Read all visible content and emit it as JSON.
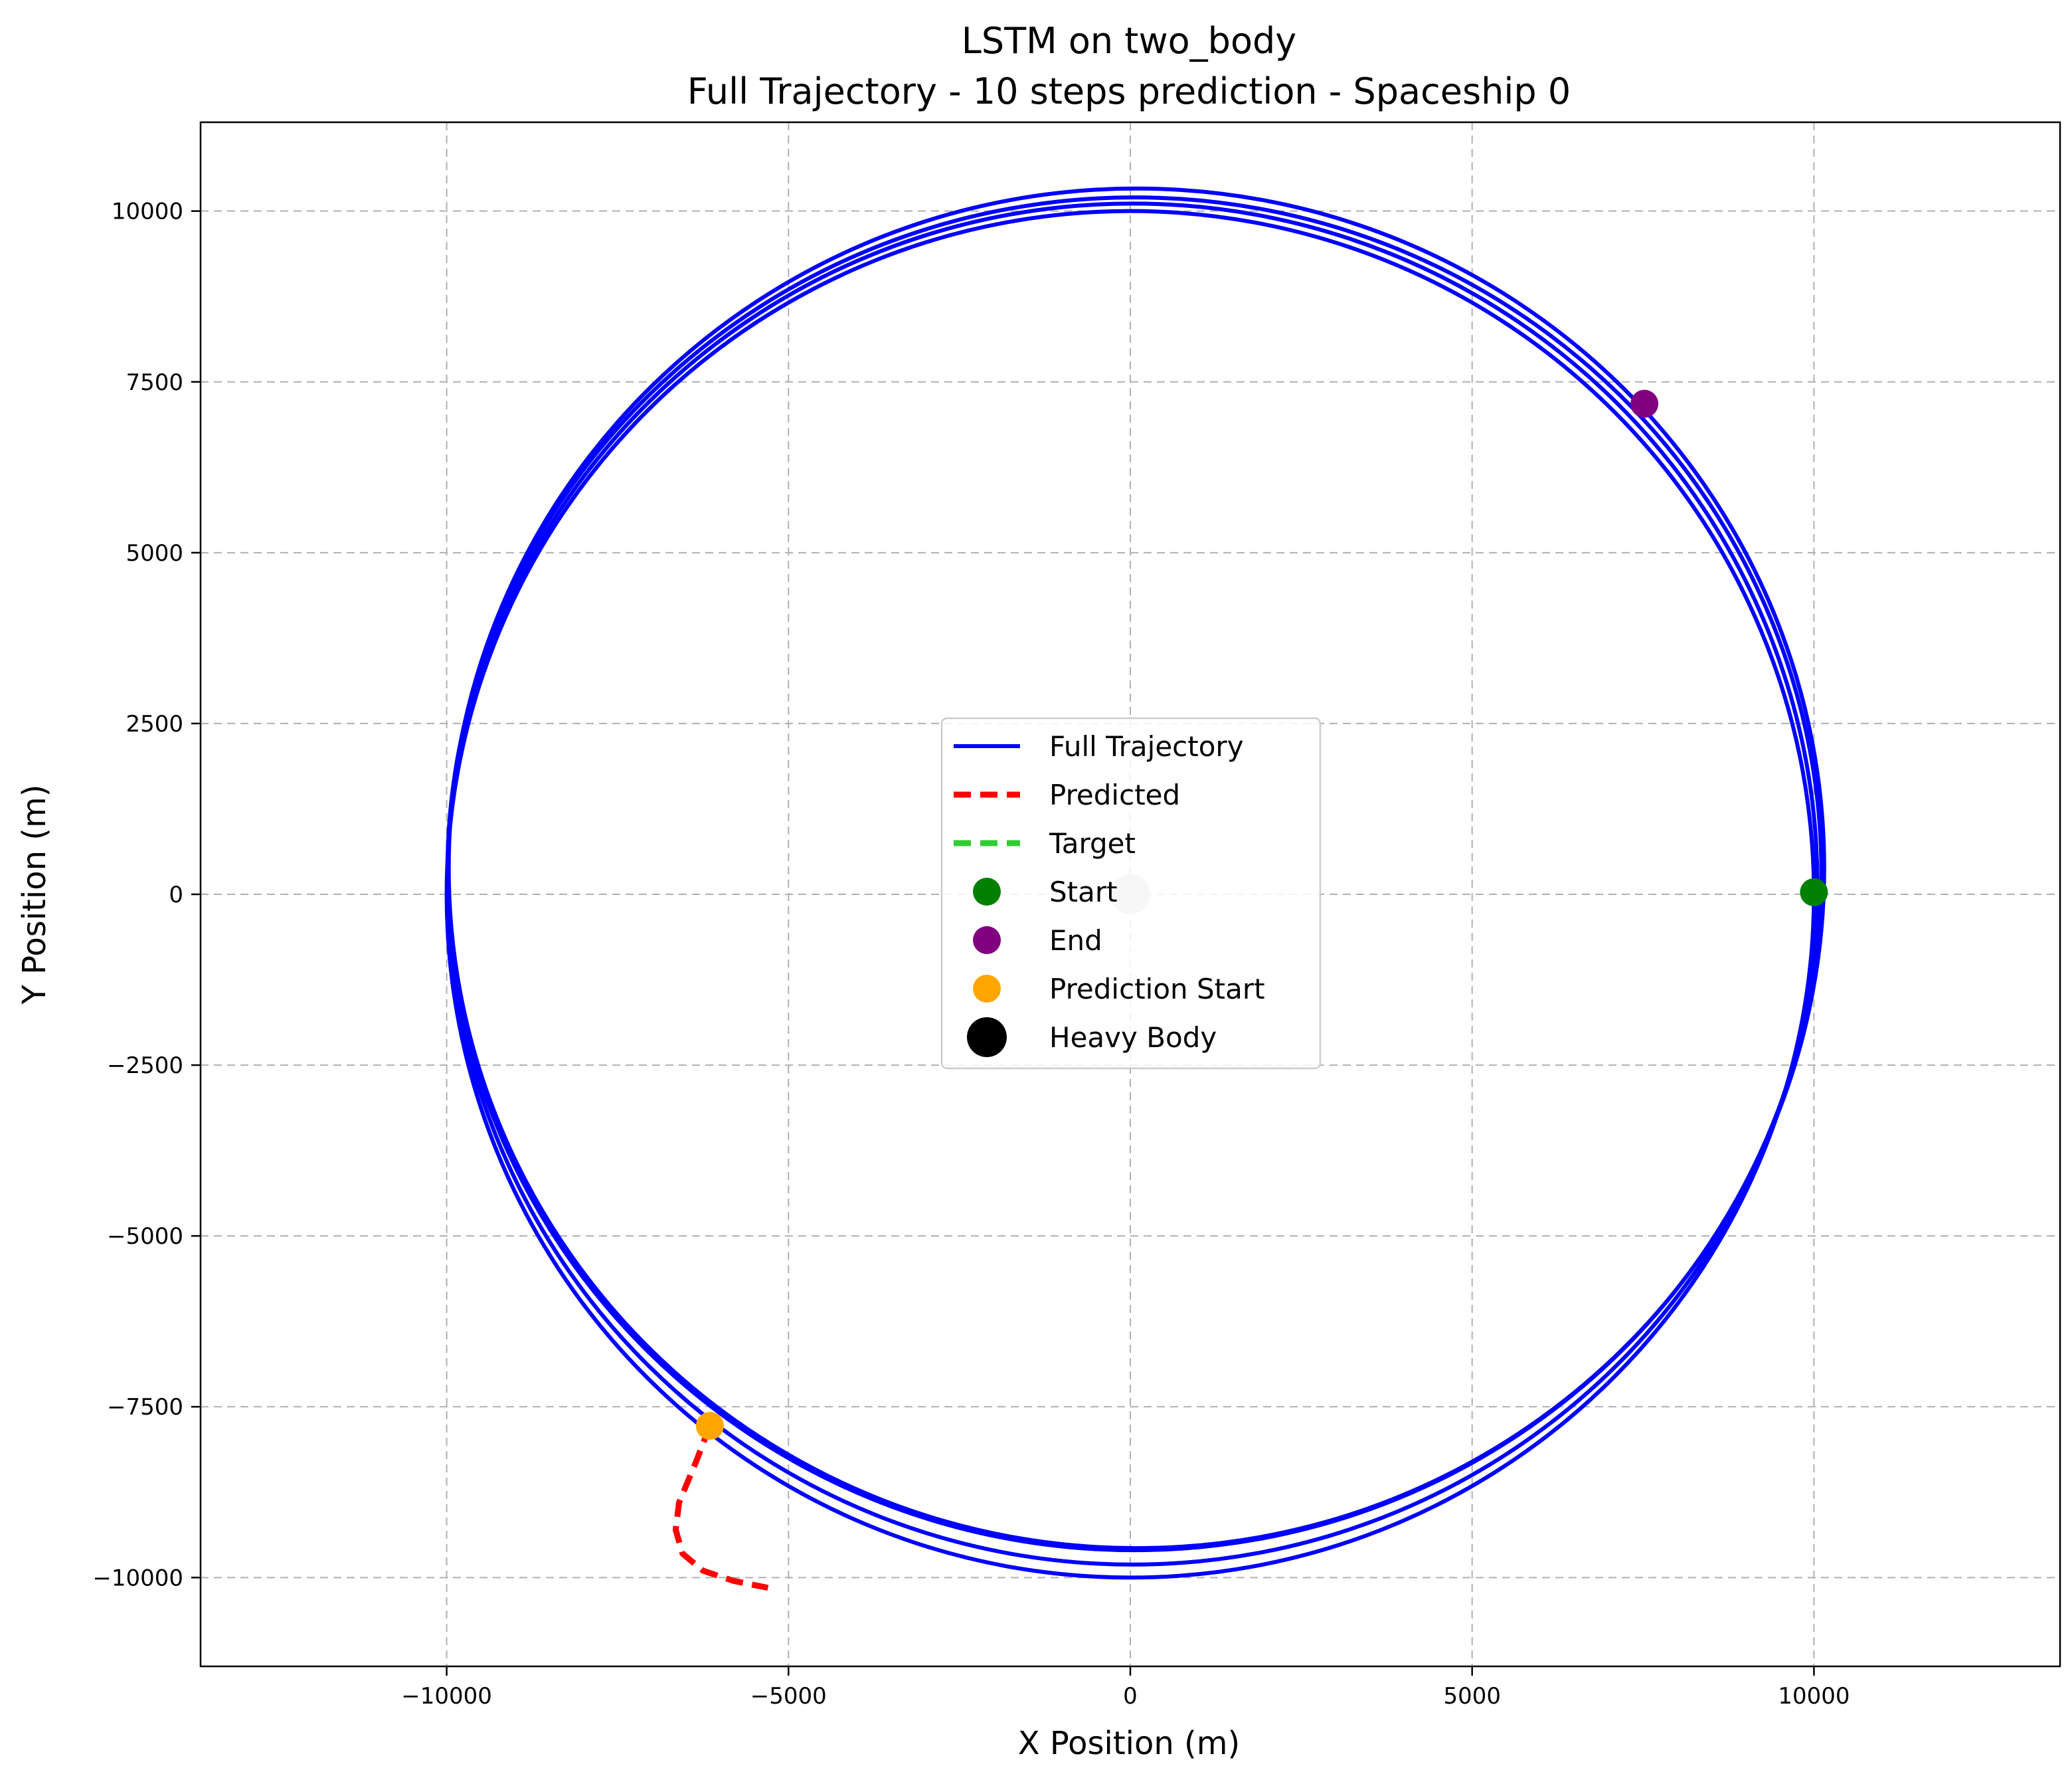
{
  "chart_data": {
    "type": "line",
    "title": "LSTM on two_body",
    "subtitle": "Full Trajectory - 10 steps prediction - Spaceship 0",
    "xlabel": "X Position (m)",
    "ylabel": "Y Position (m)",
    "xlim": [
      -13600,
      13600
    ],
    "ylim": [
      -11300,
      11300
    ],
    "x_ticks": [
      -10000,
      -5000,
      0,
      5000,
      10000
    ],
    "y_ticks": [
      -10000,
      -7500,
      -5000,
      -2500,
      0,
      2500,
      5000,
      7500,
      10000
    ],
    "x_tick_labels": [
      "−10000",
      "−5000",
      "0",
      "5000",
      "10000"
    ],
    "y_tick_labels": [
      "−10000",
      "−7500",
      "−5000",
      "−2500",
      "0",
      "2500",
      "5000",
      "7500",
      "10000"
    ],
    "grid": true,
    "legend_position": "center",
    "series": [
      {
        "name": "Full Trajectory",
        "kind": "orbit",
        "color": "#0000ff",
        "orbits": [
          {
            "cx": 0,
            "cy": 0,
            "rx": 10000,
            "ry": 10000
          },
          {
            "cx": 30,
            "cy": 150,
            "rx": 10020,
            "ry": 9960
          },
          {
            "cx": 60,
            "cy": 300,
            "rx": 10050,
            "ry": 9900
          },
          {
            "cx": 90,
            "cy": 380,
            "rx": 10060,
            "ry": 9950
          }
        ]
      },
      {
        "name": "Predicted",
        "kind": "line",
        "color": "#ff0000",
        "dashed": true,
        "points": [
          [
            -6150,
            -7780
          ],
          [
            -6350,
            -8300
          ],
          [
            -6600,
            -8900
          ],
          [
            -6650,
            -9300
          ],
          [
            -6550,
            -9650
          ],
          [
            -6250,
            -9900
          ],
          [
            -5800,
            -10050
          ],
          [
            -5300,
            -10150
          ]
        ]
      },
      {
        "name": "Target",
        "kind": "line",
        "color": "#32cd32",
        "dashed": true,
        "points": []
      },
      {
        "name": "Start",
        "kind": "marker",
        "color": "#008000",
        "points": [
          [
            10000,
            30
          ]
        ]
      },
      {
        "name": "End",
        "kind": "marker",
        "color": "#800080",
        "points": [
          [
            7520,
            7180
          ]
        ]
      },
      {
        "name": "Prediction Start",
        "kind": "marker",
        "color": "#ffa500",
        "points": [
          [
            -6150,
            -7780
          ]
        ]
      },
      {
        "name": "Heavy Body",
        "kind": "marker",
        "color": "#000000",
        "display_color": "#c8c8c8",
        "points": [
          [
            0,
            0
          ]
        ]
      }
    ]
  }
}
